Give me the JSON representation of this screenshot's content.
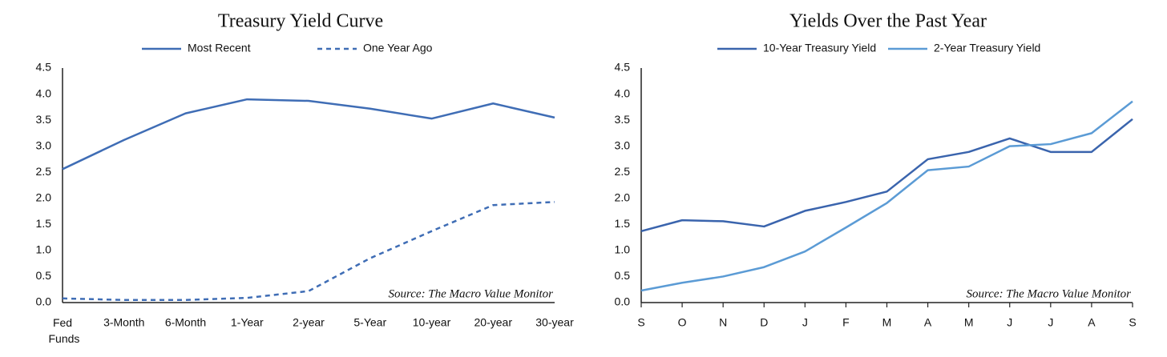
{
  "chart_data": [
    {
      "type": "line",
      "title": "Treasury Yield Curve",
      "categories": [
        "Fed Funds",
        "3-Month",
        "6-Month",
        "1-Year",
        "2-year",
        "5-Year",
        "10-year",
        "20-year",
        "30-year"
      ],
      "series": [
        {
          "name": "Most Recent",
          "color": "#3f6db5",
          "dash": false,
          "values": [
            2.56,
            3.12,
            3.63,
            3.9,
            3.87,
            3.72,
            3.53,
            3.82,
            3.55
          ]
        },
        {
          "name": "One Year Ago",
          "color": "#3f6db5",
          "dash": true,
          "values": [
            0.08,
            0.05,
            0.05,
            0.09,
            0.22,
            0.85,
            1.37,
            1.87,
            1.93
          ]
        }
      ],
      "ylim": [
        0,
        4.5
      ],
      "yticks": [
        {
          "value": 0,
          "label": "0.0"
        },
        {
          "value": 0.5,
          "label": "0.5"
        },
        {
          "value": 1,
          "label": "1.0"
        },
        {
          "value": 1.5,
          "label": "1.5"
        },
        {
          "value": 2,
          "label": "2.0"
        },
        {
          "value": 2.5,
          "label": "2.5"
        },
        {
          "value": 3,
          "label": "3.0"
        },
        {
          "value": 3.5,
          "label": "3.5"
        },
        {
          "value": 4,
          "label": "4.0"
        },
        {
          "value": 4.5,
          "label": "4.5"
        }
      ],
      "x_tick_marks": false,
      "annotation": "Source: The Macro Value Monitor"
    },
    {
      "type": "line",
      "title": "Yields Over the Past Year",
      "categories": [
        "S",
        "O",
        "N",
        "D",
        "J",
        "F",
        "M",
        "A",
        "M",
        "J",
        "J",
        "A",
        "S"
      ],
      "series": [
        {
          "name": "10-Year Treasury Yield",
          "color": "#3a64ad",
          "dash": false,
          "values": [
            1.37,
            1.58,
            1.56,
            1.46,
            1.76,
            1.93,
            2.13,
            2.75,
            2.89,
            3.15,
            2.89,
            2.89,
            3.52
          ]
        },
        {
          "name": "2-Year Treasury Yield",
          "color": "#5b9bd5",
          "dash": false,
          "values": [
            0.23,
            0.38,
            0.5,
            0.68,
            0.98,
            1.44,
            1.91,
            2.54,
            2.61,
            3.0,
            3.04,
            3.25,
            3.86
          ]
        }
      ],
      "ylim": [
        0,
        4.5
      ],
      "yticks": [
        {
          "value": 0,
          "label": "0.0"
        },
        {
          "value": 0.5,
          "label": "0.5"
        },
        {
          "value": 1,
          "label": "1.0"
        },
        {
          "value": 1.5,
          "label": "1.5"
        },
        {
          "value": 2,
          "label": "2.0"
        },
        {
          "value": 2.5,
          "label": "2.5"
        },
        {
          "value": 3,
          "label": "3.0"
        },
        {
          "value": 3.5,
          "label": "3.5"
        },
        {
          "value": 4,
          "label": "4.0"
        },
        {
          "value": 4.5,
          "label": "4.5"
        }
      ],
      "x_tick_marks": true,
      "annotation": "Source: The Macro Value Monitor"
    }
  ]
}
